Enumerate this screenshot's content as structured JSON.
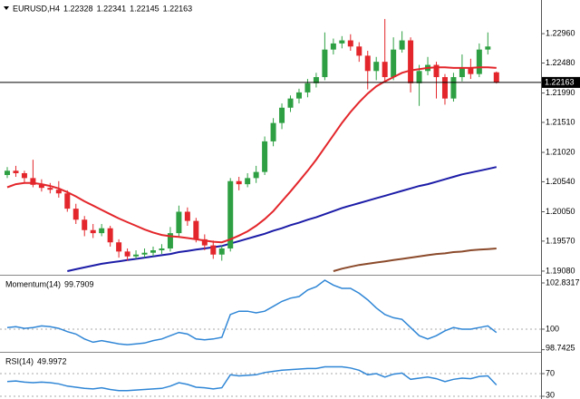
{
  "chart_data": [
    {
      "type": "candlestick",
      "title": "EURUSD,H4",
      "up_color": "#2ea043",
      "down_color": "#e3262b",
      "price_line_color": "#000000",
      "ylim": [
        1.1902,
        1.2351
      ],
      "yticks": [
        {
          "value": 1.2296,
          "label": "1.22960"
        },
        {
          "value": 1.2248,
          "label": "1.22480"
        },
        {
          "value": 1.2199,
          "label": "1.21990"
        },
        {
          "value": 1.2151,
          "label": "1.21510"
        },
        {
          "value": 1.2102,
          "label": "1.21020"
        },
        {
          "value": 1.2054,
          "label": "1.20540"
        },
        {
          "value": 1.2005,
          "label": "1.20050"
        },
        {
          "value": 1.1957,
          "label": "1.19570"
        },
        {
          "value": 1.1908,
          "label": "1.19080"
        }
      ],
      "candles": [
        [
          1.2065,
          1.2078,
          1.206,
          1.2072
        ],
        [
          1.2072,
          1.208,
          1.2062,
          1.2068
        ],
        [
          1.2068,
          1.2072,
          1.2052,
          1.206
        ],
        [
          1.206,
          1.209,
          1.2045,
          1.2049
        ],
        [
          1.2049,
          1.2058,
          1.2038,
          1.2044
        ],
        [
          1.2044,
          1.2052,
          1.2035,
          1.2041
        ],
        [
          1.2041,
          1.2055,
          1.2028,
          1.2035
        ],
        [
          1.2035,
          1.204,
          1.2005,
          1.201
        ],
        [
          1.201,
          1.2018,
          1.1985,
          1.1992
        ],
        [
          1.1992,
          1.1998,
          1.1965,
          1.1975
        ],
        [
          1.1975,
          1.1985,
          1.1962,
          1.197
        ],
        [
          1.197,
          1.1985,
          1.1965,
          1.1978
        ],
        [
          1.1978,
          1.1982,
          1.1948,
          1.1955
        ],
        [
          1.1955,
          1.196,
          1.193,
          1.194
        ],
        [
          1.194,
          1.1945,
          1.1925,
          1.1932
        ],
        [
          1.1932,
          1.1942,
          1.1928,
          1.1935
        ],
        [
          1.1935,
          1.1945,
          1.193,
          1.1938
        ],
        [
          1.1938,
          1.1948,
          1.1932,
          1.1942
        ],
        [
          1.1942,
          1.1952,
          1.1936,
          1.1945
        ],
        [
          1.1945,
          1.198,
          1.194,
          1.197
        ],
        [
          1.197,
          1.2015,
          1.1965,
          1.2005
        ],
        [
          1.2005,
          1.2012,
          1.1982,
          1.199
        ],
        [
          1.199,
          1.1995,
          1.1955,
          1.196
        ],
        [
          1.196,
          1.1968,
          1.1942,
          1.195
        ],
        [
          1.195,
          1.1958,
          1.1928,
          1.1935
        ],
        [
          1.1935,
          1.195,
          1.1925,
          1.1945
        ],
        [
          1.1945,
          1.206,
          1.194,
          1.2055
        ],
        [
          1.2055,
          1.2062,
          1.204,
          1.205
        ],
        [
          1.205,
          1.2068,
          1.2045,
          1.206
        ],
        [
          1.206,
          1.208,
          1.2052,
          1.207
        ],
        [
          1.207,
          1.2128,
          1.2065,
          1.212
        ],
        [
          1.212,
          1.2158,
          1.2112,
          1.215
        ],
        [
          1.215,
          1.2182,
          1.214,
          1.2175
        ],
        [
          1.2175,
          1.2195,
          1.2168,
          1.219
        ],
        [
          1.219,
          1.2206,
          1.2182,
          1.22
        ],
        [
          1.22,
          1.2222,
          1.2192,
          1.2215
        ],
        [
          1.2215,
          1.2232,
          1.2208,
          1.2225
        ],
        [
          1.2225,
          1.2298,
          1.222,
          1.227
        ],
        [
          1.227,
          1.2288,
          1.2262,
          1.228
        ],
        [
          1.228,
          1.2292,
          1.2272,
          1.2285
        ],
        [
          1.2285,
          1.2295,
          1.2268,
          1.2275
        ],
        [
          1.2275,
          1.2282,
          1.225,
          1.226
        ],
        [
          1.226,
          1.2268,
          1.2205,
          1.2235
        ],
        [
          1.2235,
          1.2258,
          1.222,
          1.225
        ],
        [
          1.225,
          1.232,
          1.2218,
          1.2225
        ],
        [
          1.2225,
          1.229,
          1.222,
          1.227
        ],
        [
          1.227,
          1.23,
          1.2265,
          1.2285
        ],
        [
          1.2285,
          1.229,
          1.22,
          1.2215
        ],
        [
          1.2215,
          1.2245,
          1.2178,
          1.2235
        ],
        [
          1.2235,
          1.2258,
          1.2228,
          1.2245
        ],
        [
          1.2245,
          1.225,
          1.219,
          1.2225
        ],
        [
          1.2225,
          1.223,
          1.218,
          1.219
        ],
        [
          1.219,
          1.2232,
          1.2185,
          1.2225
        ],
        [
          1.2225,
          1.2262,
          1.2218,
          1.224
        ],
        [
          1.224,
          1.2255,
          1.2222,
          1.223
        ],
        [
          1.223,
          1.228,
          1.2225,
          1.227
        ],
        [
          1.227,
          1.2298,
          1.2262,
          1.2275
        ],
        [
          1.22328,
          1.22341,
          1.22145,
          1.22163
        ]
      ],
      "moving_averages": [
        {
          "color": "#e3262b",
          "values": [
            1.2045,
            1.205,
            1.2052,
            1.2052,
            1.205,
            1.2047,
            1.2043,
            1.2037,
            1.203,
            1.2022,
            1.2015,
            1.2008,
            1.2001,
            1.1994,
            1.1988,
            1.1982,
            1.1976,
            1.1971,
            1.1967,
            1.1965,
            1.1964,
            1.1962,
            1.196,
            1.1958,
            1.1956,
            1.1955,
            1.196,
            1.1966,
            1.1973,
            1.1982,
            1.1993,
            1.2006,
            1.2022,
            1.2038,
            1.2055,
            1.2072,
            1.209,
            1.211,
            1.213,
            1.215,
            1.2168,
            1.2184,
            1.2198,
            1.221,
            1.2218,
            1.2225,
            1.2232,
            1.2236,
            1.2238,
            1.224,
            1.2241,
            1.2241,
            1.224,
            1.224,
            1.224,
            1.2241,
            1.2241,
            1.224
          ]
        },
        {
          "color": "#1c1ca8",
          "values": [
            null,
            null,
            null,
            null,
            null,
            null,
            null,
            1.1908,
            1.1911,
            1.1914,
            1.1917,
            1.192,
            1.1922,
            1.1924,
            1.1926,
            1.1928,
            1.193,
            1.1932,
            1.1934,
            1.1936,
            1.1939,
            1.1941,
            1.1943,
            1.1945,
            1.1947,
            1.1949,
            1.1953,
            1.1957,
            1.1961,
            1.1965,
            1.1969,
            1.1974,
            1.1978,
            1.1983,
            1.1987,
            1.1992,
            1.1996,
            1.2001,
            1.2006,
            1.2011,
            1.2015,
            1.2019,
            1.2023,
            1.2027,
            1.2031,
            1.2035,
            1.2039,
            1.2043,
            1.2047,
            1.205,
            1.2054,
            1.2058,
            1.2062,
            1.2066,
            1.2069,
            1.2072,
            1.2075,
            1.2078
          ]
        },
        {
          "color": "#8b4a2b",
          "values": [
            null,
            null,
            null,
            null,
            null,
            null,
            null,
            null,
            null,
            null,
            null,
            null,
            null,
            null,
            null,
            null,
            null,
            null,
            null,
            null,
            null,
            null,
            null,
            null,
            null,
            null,
            null,
            null,
            null,
            null,
            null,
            null,
            null,
            null,
            null,
            null,
            null,
            null,
            1.1908,
            1.1912,
            1.1915,
            1.1918,
            1.192,
            1.1922,
            1.1924,
            1.1926,
            1.1928,
            1.193,
            1.1932,
            1.1934,
            1.1936,
            1.1937,
            1.1939,
            1.194,
            1.1942,
            1.1943,
            1.1944,
            1.1945
          ]
        }
      ]
    },
    {
      "type": "line",
      "title": "Momentum(14)",
      "color": "#2f86d6",
      "ylim": [
        98.61,
        103.165
      ],
      "yticks": [
        102.8317,
        100,
        98.7425
      ],
      "levels": [
        100
      ],
      "values": [
        100.1,
        100.15,
        100.05,
        100.1,
        100.2,
        100.15,
        100.05,
        99.85,
        99.7,
        99.4,
        99.2,
        99.3,
        99.2,
        99.1,
        99.05,
        99.1,
        99.15,
        99.3,
        99.4,
        99.6,
        99.8,
        99.7,
        99.4,
        99.35,
        99.4,
        99.5,
        100.9,
        101.1,
        101.1,
        101.0,
        101.1,
        101.4,
        101.7,
        101.9,
        102.0,
        102.4,
        102.6,
        103.0,
        102.7,
        102.5,
        102.5,
        102.2,
        101.8,
        101.3,
        100.9,
        100.7,
        100.6,
        100.1,
        99.6,
        99.4,
        99.6,
        99.9,
        100.1,
        100.0,
        100.0,
        100.1,
        100.2,
        99.7909
      ]
    },
    {
      "type": "line",
      "title": "RSI(14)",
      "color": "#2f86d6",
      "ylim": [
        25.2,
        103.6
      ],
      "yticks": [
        70,
        30
      ],
      "levels": [
        70,
        30
      ],
      "values": [
        56,
        57,
        55,
        54,
        55,
        54,
        52,
        48,
        46,
        44,
        43,
        45,
        42,
        40,
        40,
        41,
        42,
        43,
        44,
        48,
        54,
        51,
        46,
        45,
        43,
        45,
        68,
        66,
        67,
        68,
        72,
        74,
        76,
        77,
        78,
        79,
        79,
        82,
        82,
        82,
        80,
        76,
        68,
        70,
        64,
        69,
        71,
        60,
        62,
        64,
        61,
        56,
        60,
        62,
        61,
        65,
        66,
        49.9972
      ]
    }
  ]
}
